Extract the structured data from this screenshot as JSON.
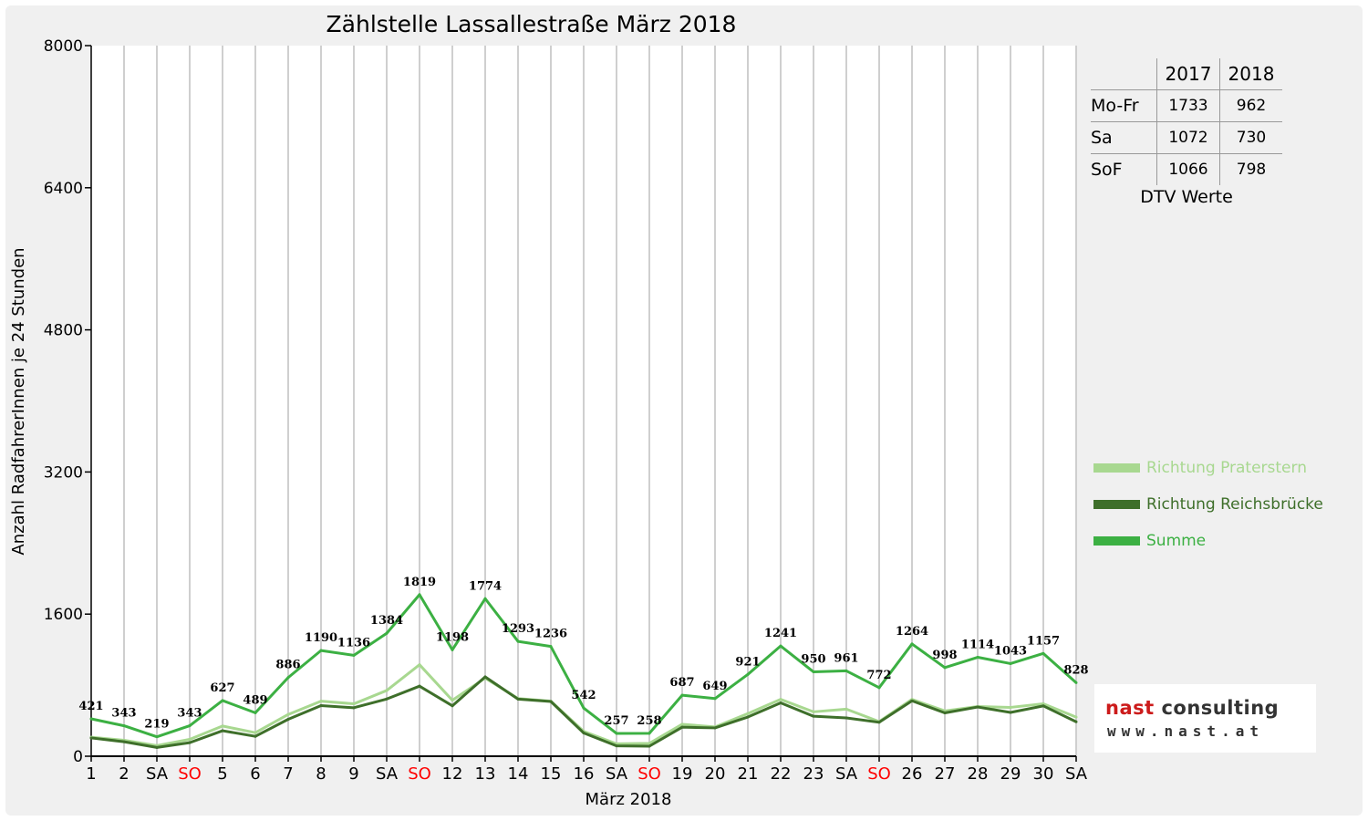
{
  "title": "Zählstelle Lassallestraße März 2018",
  "chart_data": {
    "type": "line",
    "title": "Zählstelle Lassallestraße März 2018",
    "xlabel": "März 2018",
    "ylabel": "Anzahl RadfahrerInnen je 24 Stunden",
    "ylim": [
      0,
      8000
    ],
    "yticks": [
      0,
      1600,
      3200,
      4800,
      6400,
      8000
    ],
    "grid": "vertical",
    "legend_position": "right",
    "categories": [
      "1",
      "2",
      "SA",
      "SO",
      "5",
      "6",
      "7",
      "8",
      "9",
      "SA",
      "SO",
      "12",
      "13",
      "14",
      "15",
      "16",
      "SA",
      "SO",
      "19",
      "20",
      "21",
      "22",
      "23",
      "SA",
      "SO",
      "26",
      "27",
      "28",
      "29",
      "30",
      "SA"
    ],
    "weekend_red": [
      false,
      false,
      false,
      true,
      false,
      false,
      false,
      false,
      false,
      false,
      true,
      false,
      false,
      false,
      false,
      false,
      false,
      true,
      false,
      false,
      false,
      false,
      false,
      false,
      true,
      false,
      false,
      false,
      false,
      false,
      false
    ],
    "series": [
      {
        "name": "Richtung Praterstern",
        "color": "#a8d890",
        "values": [
          215,
          180,
          120,
          190,
          340,
          265,
          470,
          620,
          590,
          740,
          1030,
          630,
          880,
          650,
          620,
          280,
          140,
          145,
          360,
          330,
          480,
          640,
          500,
          530,
          390,
          640,
          510,
          560,
          550,
          590,
          440
        ]
      },
      {
        "name": "Richtung Reichsbrücke",
        "color": "#3e6f2a",
        "values": [
          206,
          163,
          99,
          153,
          287,
          224,
          416,
          570,
          546,
          644,
          789,
          568,
          894,
          643,
          616,
          262,
          117,
          113,
          327,
          319,
          441,
          601,
          450,
          431,
          382,
          624,
          488,
          554,
          493,
          567,
          388
        ]
      },
      {
        "name": "Summe",
        "color": "#3cb043",
        "values": [
          421,
          343,
          219,
          343,
          627,
          489,
          886,
          1190,
          1136,
          1384,
          1819,
          1198,
          1774,
          1293,
          1236,
          542,
          257,
          258,
          687,
          649,
          921,
          1241,
          950,
          961,
          772,
          1264,
          998,
          1114,
          1043,
          1157,
          828
        ]
      }
    ],
    "data_labels": [
      "421",
      "343",
      "219",
      "343",
      "627",
      "489",
      "886",
      "1190",
      "1136",
      "1384",
      "1819",
      "1198",
      "1774",
      "1293",
      "1236",
      "542",
      "257",
      "258",
      "687",
      "649",
      "921",
      "1241",
      "950",
      "961",
      "772",
      "1264",
      "998",
      "1114",
      "1043",
      "1157",
      "828"
    ]
  },
  "dtv_table": {
    "headers": [
      "2017",
      "2018"
    ],
    "rows": [
      {
        "label": "Mo-Fr",
        "v2017": "1733",
        "v2018": "962"
      },
      {
        "label": "Sa",
        "v2017": "1072",
        "v2018": "730"
      },
      {
        "label": "SoF",
        "v2017": "1066",
        "v2018": "798"
      }
    ],
    "caption": "DTV Werte"
  },
  "legend": [
    {
      "label": "Richtung Praterstern",
      "color": "#a8d890"
    },
    {
      "label": "Richtung Reichsbrücke",
      "color": "#3e6f2a"
    },
    {
      "label": "Summe",
      "color": "#3cb043"
    }
  ],
  "logo": {
    "brand_red": "nast",
    "brand_dark": "consulting",
    "url": "www.nast.at"
  }
}
